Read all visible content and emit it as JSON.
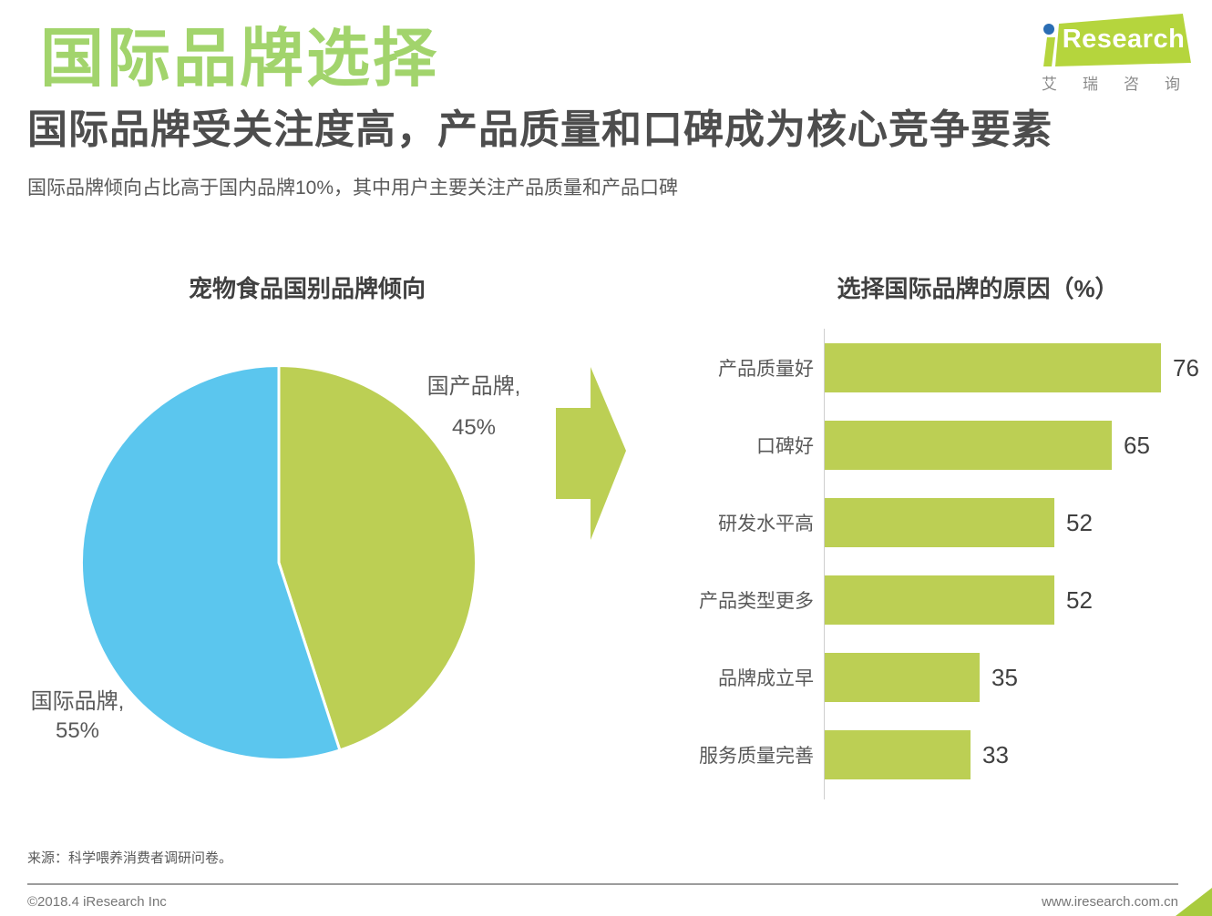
{
  "page": {
    "title": "国际品牌选择",
    "subtitle": "国际品牌受关注度高，产品质量和口碑成为核心竞争要素",
    "description": "国际品牌倾向占比高于国内品牌10%，其中用户主要关注产品质量和产品口碑"
  },
  "logo": {
    "brand": "Research",
    "chinese": "艾瑞咨询"
  },
  "colors": {
    "heading_green": "#A2D46C",
    "chart_green": "#BCCF54",
    "pie_blue": "#5BC6EE",
    "logo_green": "#B5D53D",
    "logo_dot_blue": "#2A6DB4"
  },
  "chart_data": [
    {
      "type": "pie",
      "title": "宠物食品国别品牌倾向",
      "start_angle": "top",
      "direction": "clockwise",
      "slices": [
        {
          "label": "国产品牌",
          "value": 45,
          "color": "#BCCF54",
          "display": [
            "国产品牌,",
            "45%"
          ]
        },
        {
          "label": "国际品牌",
          "value": 55,
          "color": "#5BC6EE",
          "display": [
            "国际品牌,",
            "55%"
          ]
        }
      ]
    },
    {
      "type": "bar",
      "title": "选择国际品牌的原因（%）",
      "orientation": "horizontal",
      "categories": [
        "产品质量好",
        "口碑好",
        "研发水平高",
        "产品类型更多",
        "品牌成立早",
        "服务质量完善"
      ],
      "values": [
        76,
        65,
        52,
        52,
        35,
        33
      ],
      "xlim": [
        0,
        80
      ],
      "bar_color": "#BCCF54",
      "grid": false,
      "legend": false
    }
  ],
  "footer": {
    "source": "来源：科学喂养消费者调研问卷。",
    "copyright": "©2018.4 iResearch Inc",
    "website": "www.iresearch.com.cn"
  }
}
